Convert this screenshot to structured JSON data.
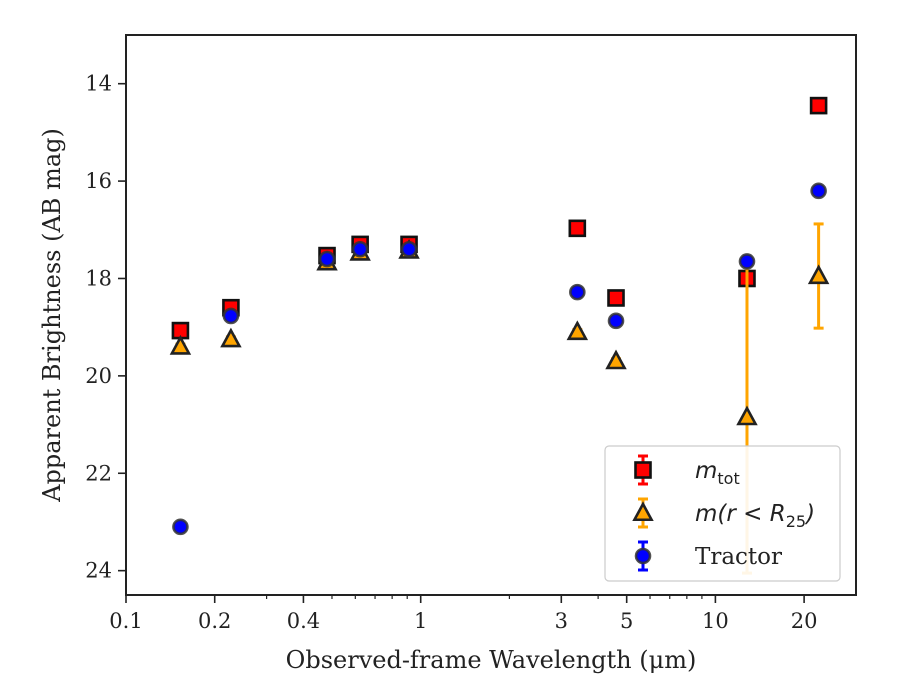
{
  "chart_data": {
    "type": "scatter",
    "xlabel": "Observed-frame Wavelength (μm)",
    "ylabel": "Apparent Brightness (AB mag)",
    "x_scale": "log",
    "xlim": [
      0.1,
      30
    ],
    "ylim": [
      24.5,
      13.0
    ],
    "y_inverted": true,
    "x_ticks": [
      {
        "value": 0.1,
        "label": "0.1"
      },
      {
        "value": 0.2,
        "label": "0.2"
      },
      {
        "value": 0.4,
        "label": "0.4"
      },
      {
        "value": 1,
        "label": "1"
      },
      {
        "value": 3,
        "label": "3"
      },
      {
        "value": 5,
        "label": "5"
      },
      {
        "value": 10,
        "label": "10"
      },
      {
        "value": 20,
        "label": "20"
      }
    ],
    "y_ticks": [
      {
        "value": 14,
        "label": "14"
      },
      {
        "value": 16,
        "label": "16"
      },
      {
        "value": 18,
        "label": "18"
      },
      {
        "value": 20,
        "label": "20"
      },
      {
        "value": 22,
        "label": "22"
      },
      {
        "value": 24,
        "label": "24"
      }
    ],
    "grid": false,
    "legend_position": "bottom-right",
    "series": [
      {
        "key": "tot",
        "label_main": "m",
        "label_sub": "tot",
        "marker": "square",
        "face_color": "#ff0000",
        "edge_color": "#111111",
        "error_color": "#ff0000",
        "points": [
          {
            "x": 0.153,
            "y": 19.07,
            "err": 0.05
          },
          {
            "x": 0.227,
            "y": 18.6,
            "err": 0.05
          },
          {
            "x": 0.481,
            "y": 17.53,
            "err": 0.03
          },
          {
            "x": 0.623,
            "y": 17.3,
            "err": 0.03
          },
          {
            "x": 0.913,
            "y": 17.3,
            "err": 0.03
          },
          {
            "x": 3.4,
            "y": 16.97,
            "err": 0.03
          },
          {
            "x": 4.6,
            "y": 18.4,
            "err": 0.05
          },
          {
            "x": 12.8,
            "y": 18.0,
            "err": 0.1
          },
          {
            "x": 22.4,
            "y": 14.45,
            "err": 0.05
          }
        ]
      },
      {
        "key": "r25",
        "label_main": "m(r < R",
        "label_sub": "25",
        "label_close": ")",
        "marker": "triangle",
        "face_color": "#ffa500",
        "edge_color": "#222222",
        "error_color": "#ffa500",
        "points": [
          {
            "x": 0.153,
            "y": 19.4,
            "err": 0.05
          },
          {
            "x": 0.227,
            "y": 19.25,
            "err": 0.05
          },
          {
            "x": 0.481,
            "y": 17.67,
            "err": 0.03
          },
          {
            "x": 0.623,
            "y": 17.47,
            "err": 0.03
          },
          {
            "x": 0.913,
            "y": 17.43,
            "err": 0.03
          },
          {
            "x": 3.4,
            "y": 19.1,
            "err": 0.05
          },
          {
            "x": 4.6,
            "y": 19.7,
            "err": 0.05
          },
          {
            "x": 12.8,
            "y": 20.85,
            "err": 3.2
          },
          {
            "x": 22.4,
            "y": 17.95,
            "err": 1.07
          }
        ]
      },
      {
        "key": "tractor",
        "label_main": "Tractor",
        "marker": "circle",
        "face_color": "#0000ff",
        "edge_color": "#333333",
        "error_color": "#0000ff",
        "points": [
          {
            "x": 0.153,
            "y": 23.1,
            "err": 0.05
          },
          {
            "x": 0.227,
            "y": 18.77,
            "err": 0.05
          },
          {
            "x": 0.481,
            "y": 17.6,
            "err": 0.03
          },
          {
            "x": 0.623,
            "y": 17.4,
            "err": 0.03
          },
          {
            "x": 0.913,
            "y": 17.4,
            "err": 0.03
          },
          {
            "x": 3.4,
            "y": 18.28,
            "err": 0.03
          },
          {
            "x": 4.6,
            "y": 18.87,
            "err": 0.05
          },
          {
            "x": 12.8,
            "y": 17.65,
            "err": 0.05
          },
          {
            "x": 22.4,
            "y": 16.2,
            "err": 0.05
          }
        ]
      }
    ]
  }
}
